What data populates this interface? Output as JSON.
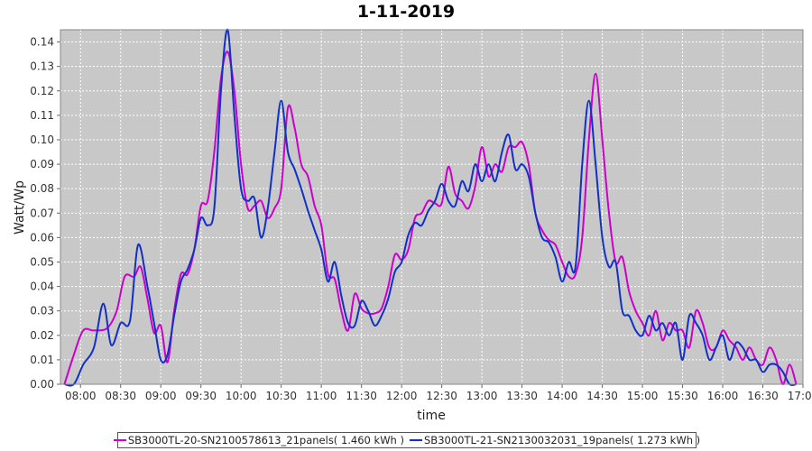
{
  "chart_data": {
    "type": "line",
    "title": "1-11-2019",
    "xlabel": "time",
    "ylabel": "Watt/Wp",
    "xlim": [
      "07:45",
      "17:00"
    ],
    "ylim": [
      0,
      0.145
    ],
    "x_ticks": [
      "08:00",
      "08:30",
      "09:00",
      "09:30",
      "10:00",
      "10:30",
      "11:00",
      "11:30",
      "12:00",
      "12:30",
      "13:00",
      "13:30",
      "14:00",
      "14:30",
      "15:00",
      "15:30",
      "16:00",
      "16:30",
      "17:00"
    ],
    "y_ticks": [
      "0.00",
      "0.01",
      "0.02",
      "0.03",
      "0.04",
      "0.05",
      "0.06",
      "0.07",
      "0.08",
      "0.09",
      "0.10",
      "0.11",
      "0.12",
      "0.13",
      "0.14"
    ],
    "grid": true,
    "legend_position": "bottom",
    "series": [
      {
        "name": "SB3000TL-20-SN2100578613_21panels( 1.460 kWh )",
        "color": "#cc00cc",
        "x": [
          "07:48",
          "07:55",
          "08:02",
          "08:10",
          "08:20",
          "08:27",
          "08:33",
          "08:40",
          "08:45",
          "08:50",
          "08:55",
          "09:00",
          "09:05",
          "09:10",
          "09:15",
          "09:20",
          "09:25",
          "09:30",
          "09:35",
          "09:40",
          "09:45",
          "09:50",
          "09:55",
          "10:00",
          "10:05",
          "10:10",
          "10:15",
          "10:20",
          "10:25",
          "10:30",
          "10:35",
          "10:40",
          "10:45",
          "10:50",
          "10:55",
          "11:00",
          "11:05",
          "11:10",
          "11:15",
          "11:20",
          "11:25",
          "11:30",
          "11:35",
          "11:40",
          "11:45",
          "11:50",
          "11:55",
          "12:00",
          "12:05",
          "12:10",
          "12:15",
          "12:20",
          "12:25",
          "12:30",
          "12:35",
          "12:40",
          "12:45",
          "12:50",
          "12:55",
          "13:00",
          "13:05",
          "13:10",
          "13:15",
          "13:20",
          "13:25",
          "13:30",
          "13:35",
          "13:40",
          "13:45",
          "13:50",
          "13:55",
          "14:00",
          "14:05",
          "14:10",
          "14:15",
          "14:20",
          "14:25",
          "14:30",
          "14:35",
          "14:40",
          "14:45",
          "14:50",
          "14:55",
          "15:00",
          "15:05",
          "15:10",
          "15:15",
          "15:20",
          "15:25",
          "15:30",
          "15:35",
          "15:40",
          "15:45",
          "15:50",
          "15:55",
          "16:00",
          "16:05",
          "16:10",
          "16:15",
          "16:20",
          "16:25",
          "16:30",
          "16:35",
          "16:40",
          "16:45",
          "16:50",
          "16:55"
        ],
        "values": [
          0.0,
          0.012,
          0.022,
          0.022,
          0.023,
          0.03,
          0.044,
          0.044,
          0.048,
          0.035,
          0.021,
          0.024,
          0.009,
          0.03,
          0.045,
          0.045,
          0.055,
          0.073,
          0.075,
          0.095,
          0.125,
          0.136,
          0.12,
          0.09,
          0.072,
          0.073,
          0.075,
          0.068,
          0.072,
          0.08,
          0.113,
          0.105,
          0.09,
          0.085,
          0.073,
          0.065,
          0.045,
          0.043,
          0.03,
          0.022,
          0.037,
          0.031,
          0.029,
          0.029,
          0.031,
          0.04,
          0.053,
          0.051,
          0.055,
          0.068,
          0.07,
          0.075,
          0.074,
          0.074,
          0.089,
          0.078,
          0.075,
          0.072,
          0.081,
          0.097,
          0.085,
          0.09,
          0.087,
          0.097,
          0.097,
          0.099,
          0.09,
          0.07,
          0.063,
          0.059,
          0.057,
          0.05,
          0.044,
          0.045,
          0.06,
          0.1,
          0.127,
          0.1,
          0.07,
          0.05,
          0.052,
          0.038,
          0.03,
          0.025,
          0.02,
          0.03,
          0.018,
          0.025,
          0.022,
          0.022,
          0.015,
          0.03,
          0.025,
          0.015,
          0.015,
          0.022,
          0.018,
          0.015,
          0.01,
          0.015,
          0.01,
          0.008,
          0.015,
          0.01,
          0.0,
          0.008,
          0.0
        ]
      },
      {
        "name": "SB3000TL-21-SN2130032031_19panels( 1.273 kWh )",
        "color": "#1030c8",
        "x": [
          "07:48",
          "07:55",
          "08:02",
          "08:10",
          "08:17",
          "08:23",
          "08:30",
          "08:37",
          "08:43",
          "08:50",
          "08:55",
          "09:00",
          "09:05",
          "09:10",
          "09:15",
          "09:20",
          "09:25",
          "09:30",
          "09:35",
          "09:40",
          "09:45",
          "09:50",
          "09:55",
          "10:00",
          "10:05",
          "10:10",
          "10:15",
          "10:20",
          "10:25",
          "10:30",
          "10:35",
          "10:40",
          "10:45",
          "10:50",
          "10:55",
          "11:00",
          "11:05",
          "11:10",
          "11:15",
          "11:20",
          "11:25",
          "11:30",
          "11:35",
          "11:40",
          "11:45",
          "11:50",
          "11:55",
          "12:00",
          "12:05",
          "12:10",
          "12:15",
          "12:20",
          "12:25",
          "12:30",
          "12:35",
          "12:40",
          "12:45",
          "12:50",
          "12:55",
          "13:00",
          "13:05",
          "13:10",
          "13:15",
          "13:20",
          "13:25",
          "13:30",
          "13:35",
          "13:40",
          "13:45",
          "13:50",
          "13:55",
          "14:00",
          "14:05",
          "14:10",
          "14:15",
          "14:20",
          "14:25",
          "14:30",
          "14:35",
          "14:40",
          "14:45",
          "14:50",
          "14:55",
          "15:00",
          "15:05",
          "15:10",
          "15:15",
          "15:20",
          "15:25",
          "15:30",
          "15:35",
          "15:40",
          "15:45",
          "15:50",
          "15:55",
          "16:00",
          "16:05",
          "16:10",
          "16:15",
          "16:20",
          "16:25",
          "16:30",
          "16:35",
          "16:40",
          "16:45",
          "16:50",
          "16:55"
        ],
        "values": [
          0.0,
          0.0,
          0.008,
          0.015,
          0.033,
          0.016,
          0.025,
          0.026,
          0.057,
          0.04,
          0.025,
          0.01,
          0.012,
          0.028,
          0.042,
          0.047,
          0.055,
          0.068,
          0.065,
          0.072,
          0.12,
          0.145,
          0.11,
          0.08,
          0.075,
          0.076,
          0.06,
          0.072,
          0.095,
          0.116,
          0.095,
          0.088,
          0.08,
          0.071,
          0.063,
          0.055,
          0.042,
          0.05,
          0.036,
          0.025,
          0.024,
          0.034,
          0.03,
          0.024,
          0.028,
          0.035,
          0.046,
          0.05,
          0.061,
          0.066,
          0.065,
          0.071,
          0.075,
          0.082,
          0.075,
          0.073,
          0.083,
          0.079,
          0.09,
          0.083,
          0.09,
          0.083,
          0.095,
          0.102,
          0.088,
          0.09,
          0.085,
          0.07,
          0.06,
          0.058,
          0.052,
          0.042,
          0.05,
          0.048,
          0.09,
          0.116,
          0.09,
          0.06,
          0.048,
          0.05,
          0.03,
          0.028,
          0.022,
          0.02,
          0.028,
          0.022,
          0.025,
          0.02,
          0.025,
          0.01,
          0.028,
          0.025,
          0.02,
          0.01,
          0.015,
          0.02,
          0.01,
          0.017,
          0.015,
          0.01,
          0.01,
          0.005,
          0.008,
          0.008,
          0.005,
          0.0,
          0.0
        ]
      }
    ]
  }
}
